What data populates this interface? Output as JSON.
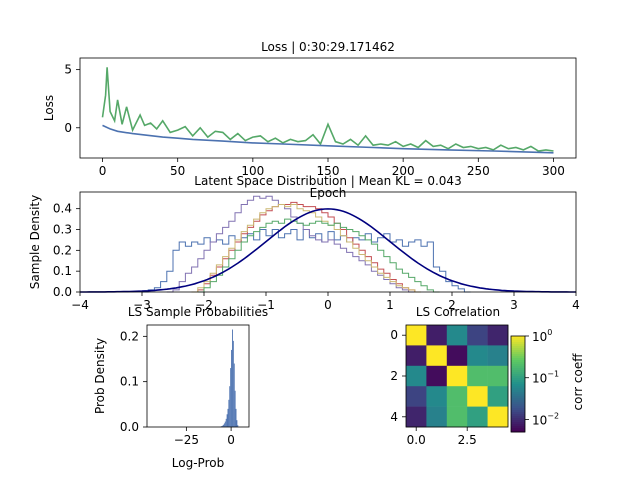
{
  "figure": {
    "background": "#ffffff",
    "colors": {
      "loss_train": "#55a868",
      "loss_val": "#4c72b0",
      "hist_blue": "#4c72b0",
      "hist_green": "#55a868",
      "hist_red": "#c44e52",
      "hist_purple": "#8172b2",
      "hist_yellow": "#ccb974",
      "normal_curve": "#00007f",
      "logprob_hist": "#4c72b0"
    }
  },
  "chart_data": [
    {
      "id": "loss",
      "type": "line",
      "title": "Loss | 0:30:29.171462",
      "xlabel": "Epoch",
      "ylabel": "Loss",
      "xlim": [
        -15,
        315
      ],
      "ylim": [
        -2.6,
        6.0
      ],
      "xticks": [
        0,
        50,
        100,
        150,
        200,
        250,
        300
      ],
      "yticks": [
        0,
        5
      ],
      "grid": false,
      "series": [
        {
          "role": "train",
          "color": "#55a868",
          "x": [
            0,
            2,
            3,
            5,
            8,
            10,
            13,
            16,
            20,
            25,
            28,
            32,
            36,
            40,
            45,
            50,
            55,
            60,
            65,
            70,
            75,
            80,
            85,
            90,
            95,
            100,
            105,
            110,
            115,
            120,
            125,
            130,
            135,
            140,
            145,
            150,
            155,
            160,
            165,
            170,
            175,
            180,
            185,
            190,
            195,
            200,
            205,
            210,
            215,
            220,
            225,
            230,
            235,
            240,
            245,
            250,
            255,
            260,
            265,
            270,
            275,
            280,
            285,
            290,
            295,
            300
          ],
          "y": [
            0.9,
            2.8,
            5.2,
            1.4,
            0.6,
            2.4,
            0.3,
            1.8,
            -0.2,
            1.1,
            0.2,
            0.4,
            -0.1,
            0.6,
            -0.4,
            -0.2,
            0.1,
            -0.7,
            0.0,
            -0.8,
            -0.3,
            -0.4,
            -1.0,
            -0.5,
            -1.1,
            -0.8,
            -0.7,
            -1.2,
            -0.9,
            -1.3,
            -1.0,
            -1.2,
            -1.1,
            -0.6,
            -1.4,
            0.3,
            -1.2,
            -1.4,
            -1.0,
            -1.5,
            -0.7,
            -1.5,
            -1.4,
            -1.5,
            -1.2,
            -1.6,
            -1.4,
            -1.7,
            -1.1,
            -1.6,
            -1.5,
            -1.8,
            -1.4,
            -1.7,
            -1.6,
            -1.8,
            -1.7,
            -1.9,
            -1.5,
            -1.8,
            -1.7,
            -1.9,
            -1.6,
            -2.0,
            -1.9,
            -2.0
          ]
        },
        {
          "role": "validation",
          "color": "#4c72b0",
          "x": [
            0,
            5,
            10,
            20,
            30,
            40,
            50,
            60,
            80,
            100,
            120,
            150,
            180,
            200,
            230,
            260,
            300
          ],
          "y": [
            0.2,
            -0.1,
            -0.3,
            -0.5,
            -0.65,
            -0.8,
            -0.9,
            -1.0,
            -1.15,
            -1.3,
            -1.4,
            -1.55,
            -1.7,
            -1.8,
            -1.9,
            -2.0,
            -2.15
          ]
        }
      ]
    },
    {
      "id": "latent",
      "type": "line",
      "title": "Latent Space Distribution | Mean KL = 0.043",
      "xlabel": "",
      "ylabel": "Sample Density",
      "xlim": [
        -4,
        4
      ],
      "ylim": [
        0,
        0.48
      ],
      "xticks": [
        -4,
        -3,
        -2,
        -1,
        0,
        1,
        2,
        3,
        4
      ],
      "yticks": [
        0.0,
        0.1,
        0.2,
        0.3,
        0.4
      ],
      "ytick_labels": [
        "0.0",
        "0.1",
        "0.2",
        "0.3",
        "0.4"
      ],
      "grid": false,
      "bin_width": 0.1,
      "series": [
        {
          "role": "step-histogram",
          "color": "#4c72b0",
          "x_start": -3.0,
          "values": [
            0.0,
            0.01,
            0.02,
            0.05,
            0.1,
            0.2,
            0.24,
            0.22,
            0.24,
            0.23,
            0.26,
            0.24,
            0.25,
            0.23,
            0.27,
            0.24,
            0.26,
            0.28,
            0.25,
            0.3,
            0.27,
            0.3,
            0.26,
            0.28,
            0.3,
            0.25,
            0.3,
            0.26,
            0.28,
            0.24,
            0.29,
            0.25,
            0.27,
            0.24,
            0.26,
            0.25,
            0.28,
            0.24,
            0.26,
            0.28,
            0.24,
            0.25,
            0.22,
            0.24,
            0.25,
            0.22,
            0.24,
            0.12,
            0.1,
            0.05,
            0.03,
            0.015,
            0.0
          ]
        },
        {
          "role": "step-histogram",
          "color": "#8172b2",
          "x_start": -2.6,
          "values": [
            0.0,
            0.01,
            0.05,
            0.09,
            0.12,
            0.16,
            0.2,
            0.24,
            0.28,
            0.31,
            0.34,
            0.38,
            0.42,
            0.44,
            0.46,
            0.45,
            0.46,
            0.44,
            0.42,
            0.4,
            0.36,
            0.33,
            0.3,
            0.27,
            0.25,
            0.24,
            0.25,
            0.23,
            0.21,
            0.19,
            0.17,
            0.15,
            0.13,
            0.1,
            0.08,
            0.06,
            0.04,
            0.02,
            0.01,
            0.0
          ]
        },
        {
          "role": "step-histogram",
          "color": "#c44e52",
          "x_start": -2.2,
          "values": [
            0.0,
            0.01,
            0.04,
            0.08,
            0.12,
            0.16,
            0.2,
            0.24,
            0.28,
            0.31,
            0.34,
            0.37,
            0.39,
            0.41,
            0.42,
            0.42,
            0.43,
            0.42,
            0.41,
            0.41,
            0.4,
            0.38,
            0.36,
            0.33,
            0.3,
            0.26,
            0.23,
            0.2,
            0.17,
            0.14,
            0.11,
            0.09,
            0.06,
            0.04,
            0.02,
            0.01,
            0.0
          ]
        },
        {
          "role": "step-histogram",
          "color": "#ccb974",
          "x_start": -2.2,
          "values": [
            0.0,
            0.02,
            0.05,
            0.09,
            0.13,
            0.17,
            0.21,
            0.25,
            0.29,
            0.32,
            0.35,
            0.38,
            0.4,
            0.41,
            0.42,
            0.41,
            0.42,
            0.4,
            0.39,
            0.38,
            0.36,
            0.34,
            0.32,
            0.3,
            0.27,
            0.24,
            0.21,
            0.18,
            0.15,
            0.12,
            0.09,
            0.07,
            0.05,
            0.03,
            0.02,
            0.01,
            0.0
          ]
        },
        {
          "role": "step-histogram",
          "color": "#55a868",
          "x_start": -2.1,
          "values": [
            0.0,
            0.02,
            0.05,
            0.08,
            0.12,
            0.16,
            0.2,
            0.24,
            0.27,
            0.29,
            0.31,
            0.33,
            0.34,
            0.33,
            0.35,
            0.34,
            0.33,
            0.32,
            0.33,
            0.34,
            0.33,
            0.32,
            0.33,
            0.31,
            0.3,
            0.29,
            0.27,
            0.25,
            0.23,
            0.2,
            0.17,
            0.14,
            0.11,
            0.09,
            0.07,
            0.05,
            0.03,
            0.01,
            0.0
          ]
        },
        {
          "role": "normal-pdf",
          "color": "#00007f",
          "mean": 0,
          "std": 1
        }
      ]
    },
    {
      "id": "logprob",
      "type": "bar",
      "title": "LS Sample Probabilities",
      "xlabel": "Log-Prob",
      "ylabel": "Prob Density",
      "xlim": [
        -47,
        10
      ],
      "ylim": [
        0,
        0.225
      ],
      "xticks": [
        -25,
        0
      ],
      "yticks": [
        0.0,
        0.1,
        0.2
      ],
      "ytick_labels": [
        "0.0",
        "0.1",
        "0.2"
      ],
      "grid": false,
      "bin_width": 0.5,
      "x_start": -6.0,
      "values": [
        0.001,
        0.002,
        0.003,
        0.005,
        0.008,
        0.012,
        0.018,
        0.028,
        0.04,
        0.06,
        0.09,
        0.13,
        0.17,
        0.215,
        0.19,
        0.14,
        0.08,
        0.04,
        0.015,
        0.004
      ]
    },
    {
      "id": "corr",
      "type": "heatmap",
      "title": "LS Correlation",
      "xticks": [
        0.0,
        2.5
      ],
      "xtick_labels": [
        "0.0",
        "2.5"
      ],
      "yticks": [
        0,
        2,
        4
      ],
      "colorbar": {
        "label": "corr coeff",
        "scale": "log",
        "range": [
          0.005,
          1.0
        ],
        "ticks": [
          {
            "value": 1,
            "base": "10",
            "exp": "0"
          },
          {
            "value": 0.1,
            "base": "10",
            "exp": "−1"
          },
          {
            "value": 0.01,
            "base": "10",
            "exp": "−2"
          }
        ]
      },
      "matrix": [
        [
          1.0,
          0.008,
          0.06,
          0.015,
          0.009
        ],
        [
          0.008,
          1.0,
          0.006,
          0.06,
          0.05
        ],
        [
          0.06,
          0.006,
          1.0,
          0.2,
          0.2
        ],
        [
          0.015,
          0.06,
          0.2,
          1.0,
          0.1
        ],
        [
          0.009,
          0.05,
          0.2,
          0.1,
          1.0
        ]
      ]
    }
  ]
}
